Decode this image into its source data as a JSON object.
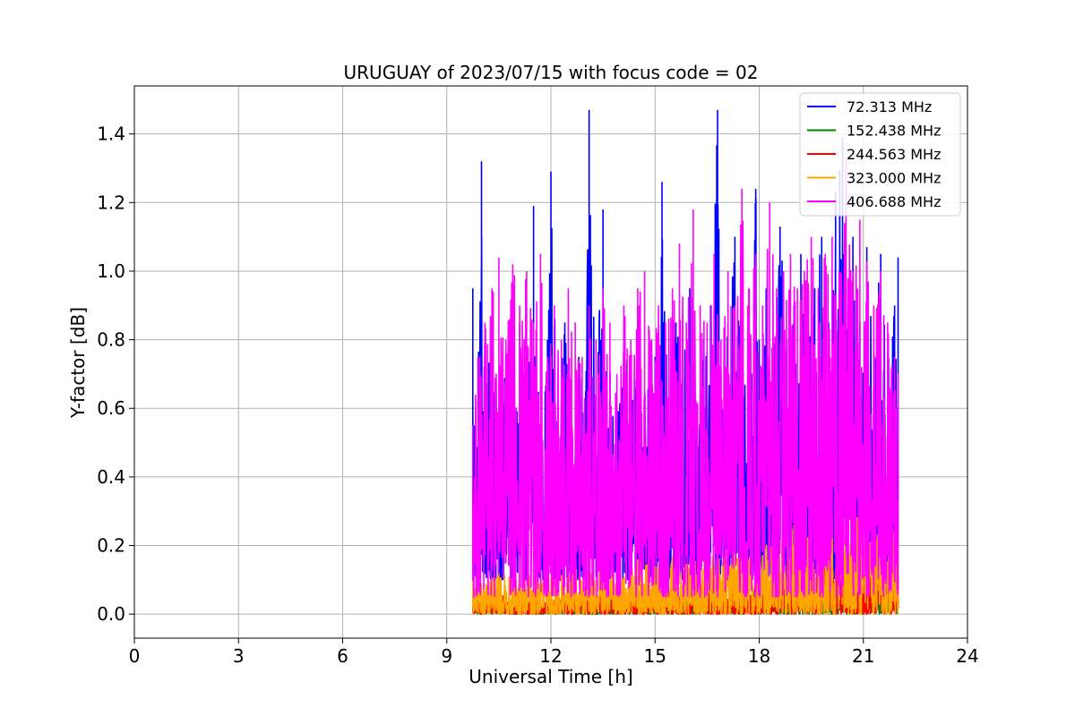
{
  "chart_data": {
    "type": "line",
    "title": "URUGUAY of 2023/07/15 with focus code = 02",
    "xlabel": "Universal Time [h]",
    "ylabel": "Y-factor [dB]",
    "xlim": [
      0,
      24
    ],
    "ylim": [
      -0.07,
      1.54
    ],
    "xticks": [
      0,
      3,
      6,
      9,
      12,
      15,
      18,
      21,
      24
    ],
    "xtick_labels": [
      "0",
      "3",
      "6",
      "9",
      "12",
      "15",
      "18",
      "21",
      "24"
    ],
    "yticks": [
      0.0,
      0.2,
      0.4,
      0.6,
      0.8,
      1.0,
      1.2,
      1.4
    ],
    "ytick_labels": [
      "0.0",
      "0.2",
      "0.4",
      "0.6",
      "0.8",
      "1.0",
      "1.2",
      "1.4"
    ],
    "grid": true,
    "legend_position": "top-right",
    "series": [
      {
        "name": "  72.313 MHz",
        "color": "#0000ff",
        "x": [
          9.75,
          9.8,
          9.9,
          10.0,
          10.1,
          10.3,
          10.5,
          10.7,
          10.9,
          11.1,
          11.3,
          11.5,
          11.7,
          11.9,
          12.0,
          12.2,
          12.4,
          12.6,
          12.8,
          13.0,
          13.1,
          13.3,
          13.5,
          13.7,
          13.9,
          14.1,
          14.3,
          14.5,
          14.7,
          14.9,
          15.0,
          15.2,
          15.4,
          15.6,
          15.8,
          16.0,
          16.2,
          16.4,
          16.6,
          16.8,
          16.9,
          17.1,
          17.3,
          17.5,
          17.7,
          17.9,
          18.0,
          18.2,
          18.4,
          18.6,
          18.8,
          19.0,
          19.2,
          19.4,
          19.6,
          19.8,
          20.0,
          20.2,
          20.4,
          20.5,
          20.7,
          20.9,
          21.1,
          21.3,
          21.5,
          21.7,
          21.9,
          22.0
        ],
        "y": [
          0.95,
          0.55,
          0.75,
          1.32,
          0.6,
          0.85,
          0.45,
          0.75,
          0.55,
          0.85,
          0.6,
          1.19,
          0.5,
          0.8,
          1.29,
          0.6,
          0.85,
          0.55,
          0.75,
          0.65,
          1.47,
          0.6,
          1.18,
          0.7,
          0.55,
          0.85,
          0.6,
          0.9,
          0.65,
          0.8,
          0.75,
          1.26,
          0.6,
          0.85,
          0.7,
          0.95,
          0.6,
          0.8,
          0.9,
          1.47,
          0.7,
          0.85,
          1.1,
          0.75,
          0.9,
          1.24,
          0.8,
          0.95,
          0.7,
          1.13,
          0.8,
          0.9,
          1.05,
          0.8,
          0.95,
          1.1,
          0.85,
          1.23,
          1.39,
          0.9,
          1.1,
          0.85,
          1.07,
          0.8,
          1.05,
          0.75,
          0.9,
          1.04
        ]
      },
      {
        "name": "152.438 MHz",
        "color": "#008000",
        "x": [
          9.75,
          10.0,
          10.5,
          11.0,
          11.5,
          12.0,
          12.5,
          13.0,
          13.5,
          14.0,
          14.5,
          15.0,
          15.5,
          16.0,
          16.5,
          17.0,
          17.5,
          18.0,
          18.5,
          19.0,
          19.5,
          20.0,
          20.5,
          21.0,
          21.5,
          22.0
        ],
        "y": [
          0.04,
          0.03,
          0.05,
          0.02,
          0.04,
          0.03,
          0.05,
          0.04,
          0.06,
          0.03,
          0.05,
          0.04,
          0.06,
          0.05,
          0.07,
          0.05,
          0.06,
          0.08,
          0.07,
          0.09,
          0.08,
          0.1,
          0.12,
          0.1,
          0.09,
          0.08
        ]
      },
      {
        "name": "244.563 MHz",
        "color": "#ff0000",
        "x": [
          9.75,
          10.0,
          10.5,
          11.0,
          11.5,
          12.0,
          12.5,
          13.0,
          13.5,
          14.0,
          14.5,
          15.0,
          15.5,
          16.0,
          16.5,
          17.0,
          17.5,
          18.0,
          18.5,
          19.0,
          19.5,
          20.0,
          20.5,
          21.0,
          21.5,
          22.0
        ],
        "y": [
          0.05,
          0.04,
          0.06,
          0.04,
          0.05,
          0.04,
          0.06,
          0.05,
          0.06,
          0.05,
          0.06,
          0.05,
          0.06,
          0.06,
          0.07,
          0.06,
          0.08,
          0.1,
          0.1,
          0.12,
          0.15,
          0.18,
          0.2,
          0.17,
          0.15,
          0.12
        ]
      },
      {
        "name": "323.000 MHz",
        "color": "#ffa500",
        "x": [
          9.75,
          10.0,
          10.5,
          11.0,
          11.5,
          12.0,
          12.5,
          13.0,
          13.5,
          14.0,
          14.5,
          15.0,
          15.5,
          16.0,
          16.5,
          17.0,
          17.5,
          18.0,
          18.5,
          19.0,
          19.5,
          20.0,
          20.5,
          21.0,
          21.5,
          22.0
        ],
        "y": [
          0.1,
          0.09,
          0.12,
          0.1,
          0.13,
          0.11,
          0.14,
          0.12,
          0.15,
          0.13,
          0.16,
          0.14,
          0.17,
          0.15,
          0.18,
          0.17,
          0.2,
          0.22,
          0.24,
          0.26,
          0.28,
          0.3,
          0.33,
          0.3,
          0.28,
          0.25
        ]
      },
      {
        "name": "406.688 MHz",
        "color": "#ff00ff",
        "x": [
          9.75,
          9.9,
          10.1,
          10.3,
          10.5,
          10.7,
          10.9,
          11.1,
          11.3,
          11.5,
          11.7,
          11.9,
          12.1,
          12.3,
          12.5,
          12.7,
          12.9,
          13.1,
          13.3,
          13.5,
          13.7,
          13.9,
          14.1,
          14.3,
          14.5,
          14.7,
          14.9,
          15.1,
          15.3,
          15.5,
          15.7,
          15.9,
          16.1,
          16.3,
          16.5,
          16.7,
          16.9,
          17.1,
          17.3,
          17.5,
          17.7,
          17.9,
          18.1,
          18.3,
          18.5,
          18.7,
          18.9,
          19.1,
          19.3,
          19.5,
          19.7,
          19.9,
          20.1,
          20.3,
          20.5,
          20.7,
          20.9,
          21.1,
          21.3,
          21.5,
          21.7,
          21.9,
          22.0
        ],
        "y": [
          0.55,
          0.75,
          0.85,
          0.95,
          1.04,
          0.8,
          1.02,
          0.9,
          1.0,
          0.85,
          1.05,
          0.75,
          0.9,
          0.8,
          0.95,
          0.85,
          0.75,
          0.9,
          0.8,
          0.95,
          0.85,
          0.7,
          0.9,
          0.8,
          0.95,
          1.0,
          0.8,
          0.9,
          0.85,
          0.95,
          1.08,
          0.85,
          1.18,
          0.9,
          0.85,
          1.05,
          0.8,
          1.0,
          0.9,
          1.24,
          0.95,
          1.05,
          0.9,
          1.2,
          0.95,
          1.0,
          1.05,
          0.95,
          1.0,
          1.1,
          0.95,
          1.05,
          1.1,
          1.0,
          1.33,
          1.0,
          1.15,
          1.03,
          0.9,
          1.0,
          0.85,
          0.75,
          0.7
        ]
      }
    ]
  }
}
